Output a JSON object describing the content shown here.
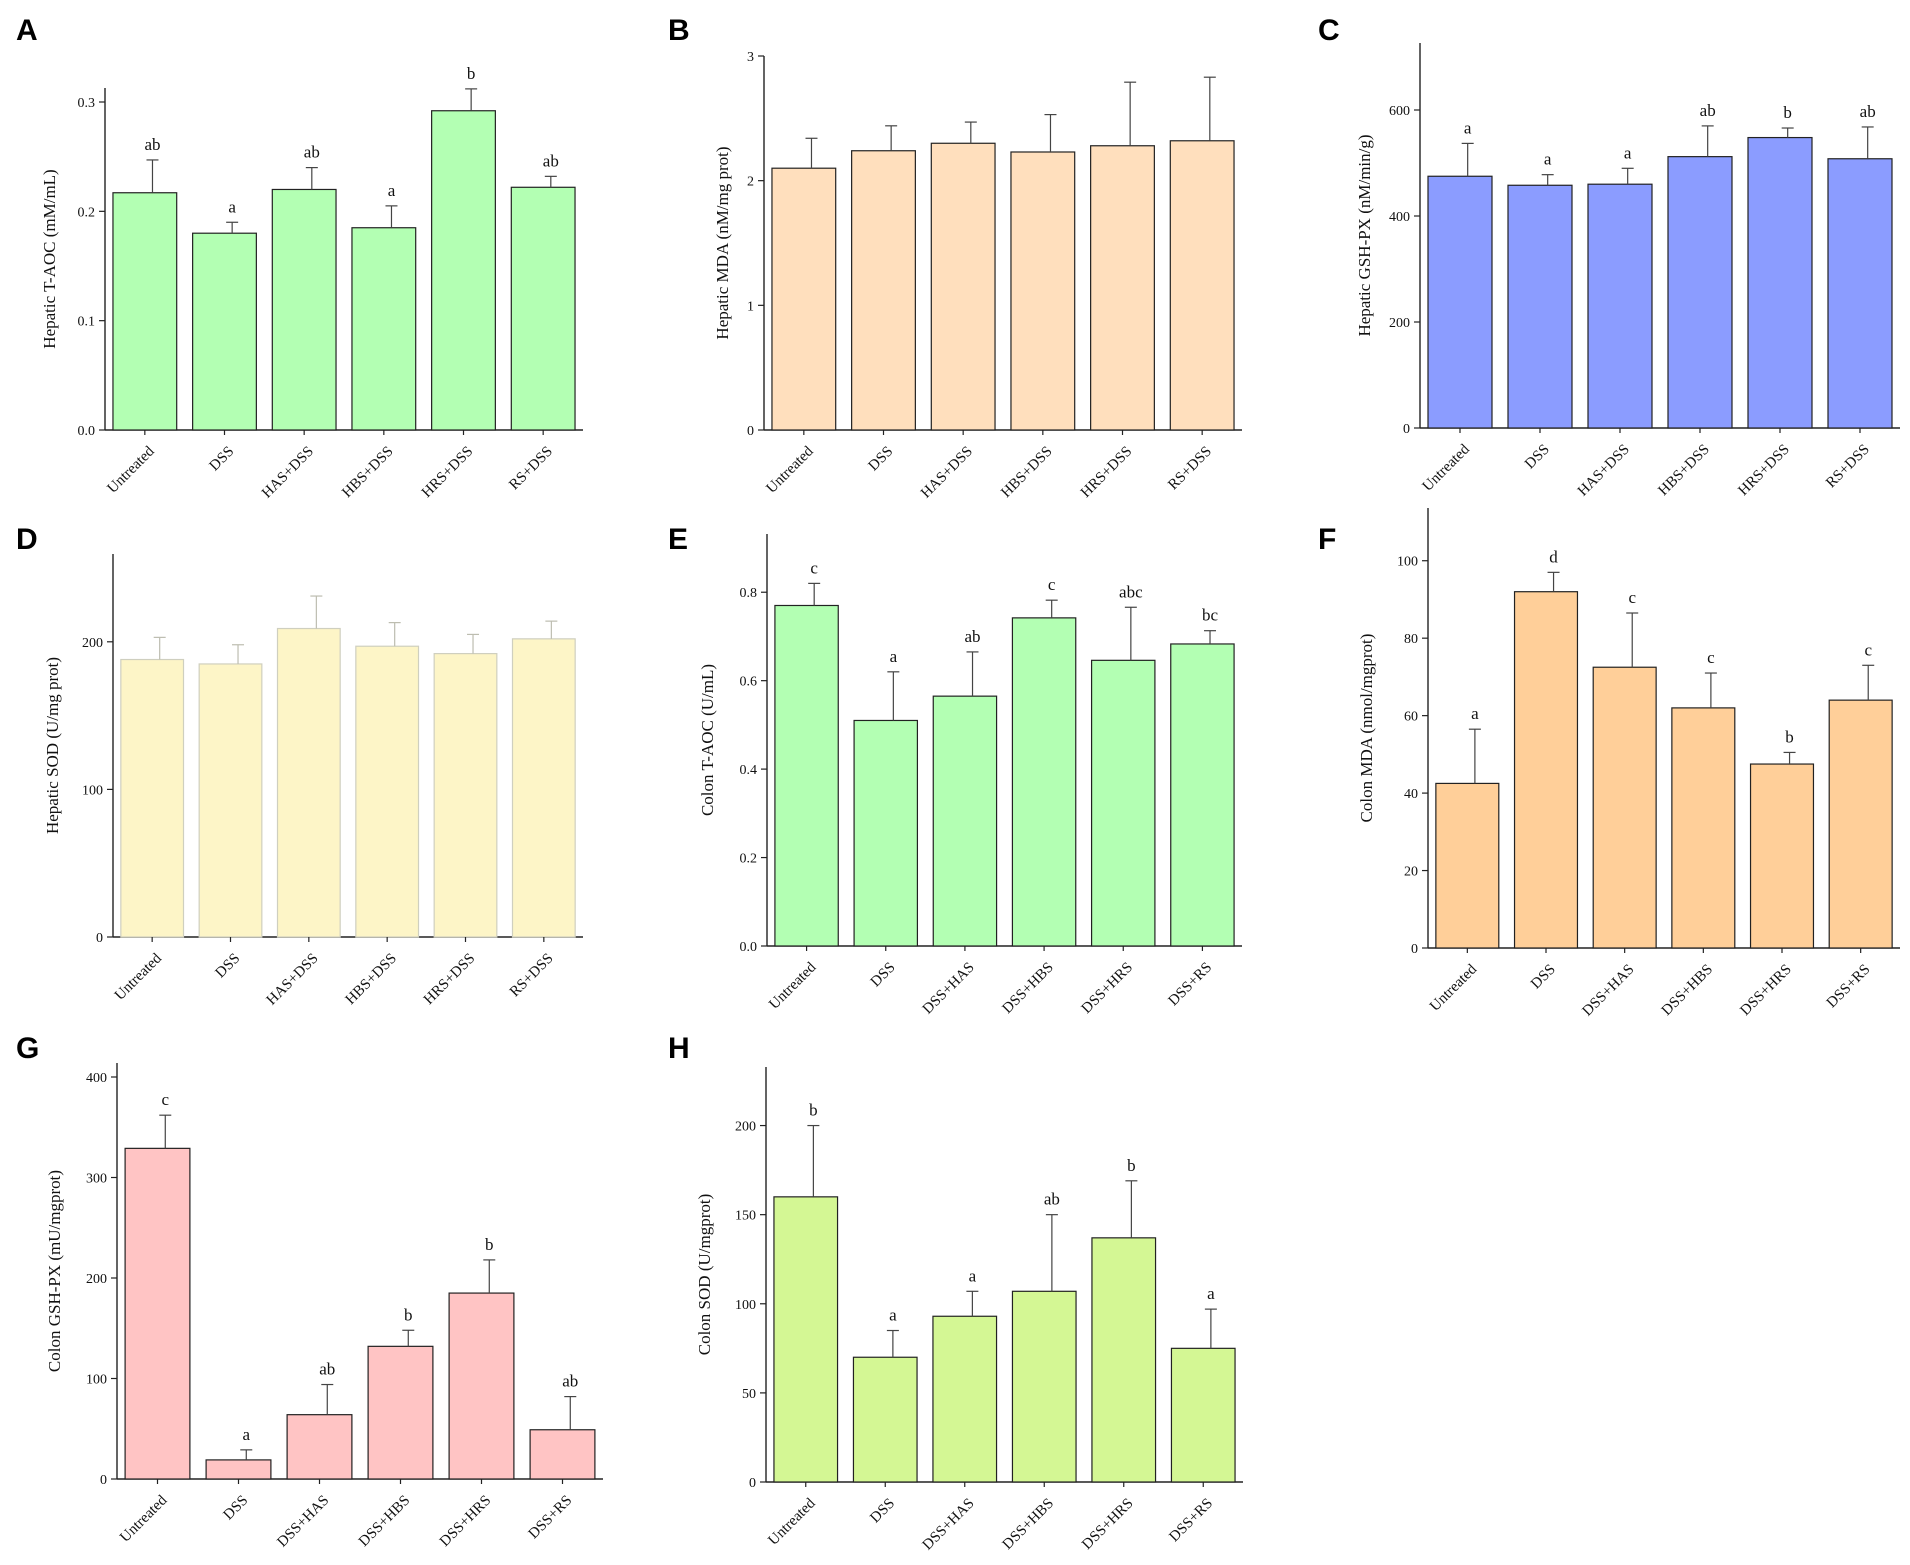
{
  "figure_description": "Eight bar charts of oxidative stress markers",
  "chart_data": [
    {
      "panel": "A",
      "type": "bar",
      "ylabel": "Hepatic T-AOC (mM/mL)",
      "ylim": [
        0,
        0.3
      ],
      "yticks": [
        0.0,
        0.1,
        0.2,
        0.3
      ],
      "tick_labels": [
        "0.0",
        "0.1",
        "0.2",
        "0.3"
      ],
      "categories": [
        "Untreated",
        "DSS",
        "HAS+DSS",
        "HBS+DSS",
        "HRS+DSS",
        "RS+DSS"
      ],
      "values": [
        0.217,
        0.18,
        0.22,
        0.185,
        0.292,
        0.222
      ],
      "errors": [
        0.03,
        0.01,
        0.02,
        0.02,
        0.02,
        0.01
      ],
      "significance": [
        "ab",
        "a",
        "ab",
        "a",
        "b",
        "ab"
      ],
      "color": "#b3ffb3"
    },
    {
      "panel": "B",
      "type": "bar",
      "ylabel": "Hepatic MDA (nM/mg prot)",
      "ylim": [
        0,
        3
      ],
      "yticks": [
        0,
        1,
        2,
        3
      ],
      "tick_labels": [
        "0",
        "1",
        "2",
        "3"
      ],
      "categories": [
        "Untreated",
        "DSS",
        "HAS+DSS",
        "HBS+DSS",
        "HRS+DSS",
        "RS+DSS"
      ],
      "values": [
        2.1,
        2.24,
        2.3,
        2.23,
        2.28,
        2.32
      ],
      "errors": [
        0.24,
        0.2,
        0.17,
        0.3,
        0.51,
        0.51
      ],
      "significance": [
        "",
        "",
        "",
        "",
        "",
        ""
      ],
      "color": "#ffdfbd"
    },
    {
      "panel": "C",
      "type": "bar",
      "ylabel": "Hepatic GSH-PX (nM/min/g)",
      "ylim": [
        0,
        700
      ],
      "yticks": [
        0,
        200,
        400,
        600
      ],
      "tick_labels": [
        "0",
        "200",
        "400",
        "600"
      ],
      "categories": [
        "Untreated",
        "DSS",
        "HAS+DSS",
        "HBS+DSS",
        "HRS+DSS",
        "RS+DSS"
      ],
      "values": [
        475,
        458,
        460,
        512,
        548,
        508
      ],
      "errors": [
        62,
        20,
        30,
        58,
        18,
        60
      ],
      "significance": [
        "a",
        "a",
        "a",
        "ab",
        "b",
        "ab"
      ],
      "color": "#8b9cff"
    },
    {
      "panel": "D",
      "type": "bar",
      "ylabel": "Hepatic SOD (U/mg prot)",
      "ylim": [
        0,
        250
      ],
      "yticks": [
        0,
        100,
        200
      ],
      "tick_labels": [
        "0",
        "100",
        "200"
      ],
      "categories": [
        "Untreated",
        "DSS",
        "HAS+DSS",
        "HBS+DSS",
        "HRS+DSS",
        "RS+DSS"
      ],
      "values": [
        188,
        185,
        209,
        197,
        192,
        202
      ],
      "errors": [
        15,
        13,
        22,
        16,
        13,
        12
      ],
      "significance": [
        "",
        "",
        "",
        "",
        "",
        ""
      ],
      "color": "#fdf5c7"
    },
    {
      "panel": "E",
      "type": "bar",
      "ylabel": "Colon T-AOC (U/mL)",
      "ylim": [
        0,
        0.9
      ],
      "yticks": [
        0.0,
        0.2,
        0.4,
        0.6,
        0.8
      ],
      "tick_labels": [
        "0.0",
        "0.2",
        "0.4",
        "0.6",
        "0.8"
      ],
      "categories": [
        "Untreated",
        "DSS",
        "DSS+HAS",
        "DSS+HBS",
        "DSS+HRS",
        "DSS+RS"
      ],
      "values": [
        0.77,
        0.51,
        0.565,
        0.742,
        0.646,
        0.683
      ],
      "errors": [
        0.05,
        0.11,
        0.1,
        0.04,
        0.12,
        0.03
      ],
      "significance": [
        "c",
        "a",
        "ab",
        "c",
        "abc",
        "bc"
      ],
      "color": "#b3ffb3"
    },
    {
      "panel": "F",
      "type": "bar",
      "ylabel": "Colon MDA (nmol/mgprot)",
      "ylim": [
        0,
        110
      ],
      "yticks": [
        0,
        20,
        40,
        60,
        80,
        100
      ],
      "tick_labels": [
        "0",
        "20",
        "40",
        "60",
        "80",
        "100"
      ],
      "categories": [
        "Untreated",
        "DSS",
        "DSS+HAS",
        "DSS+HBS",
        "DSS+HRS",
        "DSS+RS"
      ],
      "values": [
        42.5,
        92,
        72.5,
        62,
        47.5,
        64
      ],
      "errors": [
        14,
        5,
        14,
        9,
        3,
        9
      ],
      "significance": [
        "a",
        "d",
        "c",
        "c",
        "b",
        "c"
      ],
      "color": "#ffcf99"
    },
    {
      "panel": "G",
      "type": "bar",
      "ylabel": "Colon GSH-PX (mU/mgprot)",
      "ylim": [
        0,
        400
      ],
      "yticks": [
        0,
        100,
        200,
        300,
        400
      ],
      "tick_labels": [
        "0",
        "100",
        "200",
        "300",
        "400"
      ],
      "categories": [
        "Untreated",
        "DSS",
        "DSS+HAS",
        "DSS+HBS",
        "DSS+HRS",
        "DSS+RS"
      ],
      "values": [
        329,
        19,
        64,
        132,
        185,
        49
      ],
      "errors": [
        33,
        10,
        30,
        16,
        33,
        33
      ],
      "significance": [
        "c",
        "a",
        "ab",
        "b",
        "b",
        "ab"
      ],
      "color": "#ffc4c4"
    },
    {
      "panel": "H",
      "type": "bar",
      "ylabel": "Colon SOD (U/mgprot)",
      "ylim": [
        0,
        225
      ],
      "yticks": [
        0,
        50,
        100,
        150,
        200
      ],
      "tick_labels": [
        "0",
        "50",
        "100",
        "150",
        "200"
      ],
      "categories": [
        "Untreated",
        "DSS",
        "DSS+HAS",
        "DSS+HBS",
        "DSS+HRS",
        "DSS+RS"
      ],
      "values": [
        160,
        70,
        93,
        107,
        137,
        75
      ],
      "errors": [
        40,
        15,
        14,
        43,
        32,
        22
      ],
      "significance": [
        "b",
        "a",
        "a",
        "ab",
        "b",
        "a"
      ],
      "color": "#d4f794"
    }
  ]
}
